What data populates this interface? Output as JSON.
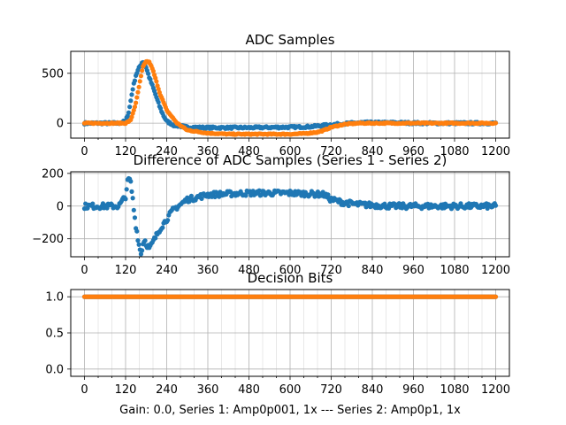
{
  "figure": {
    "xlabel": "Gain: 0.0, Series 1: Amp0p001, 1x --- Series 2: Amp0p1, 1x"
  },
  "colors": {
    "series1": "#1f77b4",
    "series2": "#ff7f0e"
  },
  "chart_data": [
    {
      "type": "scatter",
      "title": "ADC Samples",
      "xlim": [
        -40,
        1240
      ],
      "ylim": [
        -150,
        720
      ],
      "xticks": [
        0,
        120,
        240,
        360,
        480,
        600,
        720,
        840,
        960,
        1080,
        1200
      ],
      "xtick_labels": [
        "0",
        "120",
        "240",
        "360",
        "480",
        "600",
        "720",
        "840",
        "960",
        "1080",
        "1200"
      ],
      "yticks": [
        0,
        500
      ],
      "ytick_labels": [
        "0",
        "500"
      ],
      "grid": true,
      "series": [
        {
          "x": [
            0,
            100,
            120,
            130,
            140,
            150,
            160,
            170,
            180,
            190,
            200,
            210,
            220,
            230,
            240,
            260,
            300,
            360,
            420,
            480,
            540,
            600,
            660,
            720,
            760,
            800,
            900,
            1000,
            1100,
            1200
          ],
          "y": [
            0,
            0,
            20,
            120,
            330,
            480,
            560,
            620,
            560,
            450,
            360,
            260,
            160,
            80,
            20,
            -20,
            -40,
            -45,
            -45,
            -45,
            -42,
            -40,
            -35,
            -15,
            -5,
            5,
            5,
            0,
            0,
            0
          ]
        },
        {
          "x": [
            0,
            120,
            135,
            150,
            160,
            170,
            180,
            190,
            200,
            220,
            240,
            270,
            300,
            360,
            420,
            480,
            540,
            600,
            640,
            680,
            700,
            720,
            760,
            800,
            840,
            900,
            1000,
            1100,
            1200
          ],
          "y": [
            0,
            0,
            30,
            200,
            380,
            560,
            620,
            610,
            530,
            300,
            130,
            0,
            -70,
            -100,
            -110,
            -110,
            -110,
            -110,
            -105,
            -90,
            -70,
            -40,
            -10,
            0,
            0,
            0,
            0,
            0,
            0
          ]
        }
      ]
    },
    {
      "type": "scatter",
      "title": "Difference of ADC Samples (Series 1 - Series 2)",
      "xlim": [
        -40,
        1240
      ],
      "ylim": [
        -310,
        210
      ],
      "xticks": [
        0,
        120,
        240,
        360,
        480,
        600,
        720,
        840,
        960,
        1080,
        1200
      ],
      "xtick_labels": [
        "0",
        "120",
        "240",
        "360",
        "480",
        "600",
        "720",
        "840",
        "960",
        "1080",
        "1200"
      ],
      "yticks": [
        -200,
        0,
        200
      ],
      "ytick_labels": [
        "−200",
        "0",
        "200"
      ],
      "grid": true,
      "series": [
        {
          "x": [
            0,
            100,
            120,
            125,
            130,
            135,
            140,
            145,
            150,
            155,
            160,
            165,
            170,
            175,
            180,
            190,
            200,
            210,
            220,
            240,
            260,
            300,
            360,
            420,
            480,
            540,
            600,
            660,
            700,
            720,
            760,
            800,
            900,
            1000,
            1100,
            1200
          ],
          "y": [
            0,
            0,
            60,
            140,
            170,
            140,
            60,
            -40,
            -120,
            -180,
            -250,
            -290,
            -240,
            -200,
            -230,
            -260,
            -220,
            -180,
            -140,
            -80,
            -20,
            40,
            70,
            75,
            80,
            80,
            80,
            75,
            70,
            40,
            20,
            10,
            0,
            0,
            0,
            0
          ]
        }
      ]
    },
    {
      "type": "scatter",
      "title": "Decision Bits",
      "xlim": [
        -40,
        1240
      ],
      "ylim": [
        -0.1,
        1.1
      ],
      "xticks": [
        0,
        120,
        240,
        360,
        480,
        600,
        720,
        840,
        960,
        1080,
        1200
      ],
      "xtick_labels": [
        "0",
        "120",
        "240",
        "360",
        "480",
        "600",
        "720",
        "840",
        "960",
        "1080",
        "1200"
      ],
      "yticks": [
        0.0,
        0.5,
        1.0
      ],
      "ytick_labels": [
        "0.0",
        "0.5",
        "1.0"
      ],
      "grid": true,
      "series": [
        {
          "x": [
            0,
            1200
          ],
          "y": [
            1,
            1
          ]
        },
        {
          "x": [
            0,
            1200
          ],
          "y": [
            1,
            1
          ]
        }
      ]
    }
  ]
}
